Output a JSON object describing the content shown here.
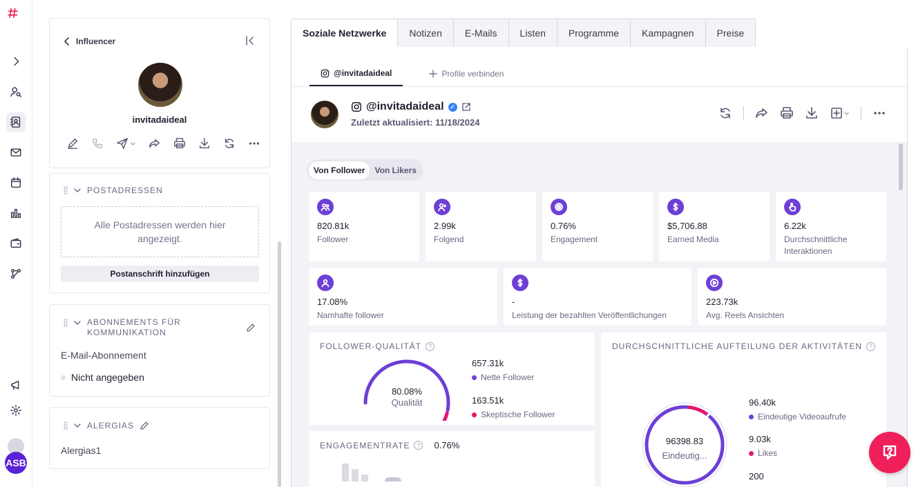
{
  "colors": {
    "brand": "#ef1f5a",
    "accent": "#6d3fd6",
    "quality_good": "#6d3fd6",
    "quality_bad": "#e3166e"
  },
  "rail": {
    "icons": [
      "logo-icon",
      "chevron-right-icon",
      "user-search-icon",
      "contacts-icon",
      "mail-icon",
      "calendar-icon",
      "chart-icon",
      "wallet-icon",
      "workflow-icon",
      "megaphone-icon",
      "gear-icon"
    ],
    "avatar_initials": "ASB"
  },
  "profile": {
    "back_label": "Influencer",
    "name": "invitadaideal"
  },
  "postal": {
    "heading": "POSTADRESSEN",
    "empty_text": "Alle Postadressen werden hier angezeigt.",
    "add_button": "Postanschrift hinzufügen"
  },
  "subscriptions": {
    "heading": "ABONNEMENTS FÜR KOMMUNIKATION",
    "email_label": "E-Mail-Abonnement",
    "status": "Nicht angegeben"
  },
  "allergies": {
    "heading": "ALERGIAS",
    "value": "Alergias1"
  },
  "tabs": [
    "Soziale Netzwerke",
    "Notizen",
    "E-Mails",
    "Listen",
    "Programme",
    "Kampagnen",
    "Preise"
  ],
  "social": {
    "active_profile": "@invitadaideal",
    "connect_label": "Profile verbinden",
    "handle": "@invitadaideal",
    "updated": "Zuletzt aktualisiert: 11/18/2024",
    "toggle": [
      "Von Follower",
      "Von Likers"
    ]
  },
  "metrics_row1": [
    {
      "value": "820.81k",
      "label": "Follower",
      "icon": "users-icon"
    },
    {
      "value": "2.99k",
      "label": "Folgend",
      "icon": "user-follow-icon"
    },
    {
      "value": "0.76%",
      "label": "Engagement",
      "icon": "target-icon"
    },
    {
      "value": "$5,706.88",
      "label": "Earned Media",
      "icon": "dollar-icon"
    },
    {
      "value": "6.22k",
      "label": "Durchschnittliche Interaktionen",
      "icon": "hand-pointer-icon"
    }
  ],
  "metrics_row2": [
    {
      "value": "17.08%",
      "label": "Namhafte follower",
      "icon": "user-star-icon"
    },
    {
      "value": "-",
      "label": "Leistung der bezahlten Veröffentlichungen",
      "icon": "dollar-icon"
    },
    {
      "value": "223.73k",
      "label": "Avg. Reels Ansichten",
      "icon": "play-icon"
    }
  ],
  "follower_quality": {
    "title": "FOLLOWER-QUALITÄT",
    "center_value": "80.08%",
    "center_label": "Qualität",
    "good_fraction": 0.8008,
    "items": [
      {
        "value": "657.31k",
        "label": "Nette Follower",
        "color": "#6d3fd6"
      },
      {
        "value": "163.51k",
        "label": "Skeptische Follower",
        "color": "#e3166e"
      }
    ]
  },
  "activity": {
    "title": "DURCHSCHNITTLICHE AUFTEILUNG DER AKTIVITÄTEN",
    "center_value": "96398.83",
    "center_label": "Eindeutig...",
    "items": [
      {
        "value": "96.40k",
        "label": "Eindeutige Videoaufrufe",
        "color": "#6d3fd6"
      },
      {
        "value": "9.03k",
        "label": "Likes",
        "color": "#e3166e"
      },
      {
        "value": "200",
        "label": "",
        "color": "#6d3fd6"
      }
    ],
    "fractions": [
      0.9034,
      0.0846,
      0.0019
    ]
  },
  "engagement": {
    "title": "ENGAGEMENTRATE",
    "value": "0.76%"
  }
}
